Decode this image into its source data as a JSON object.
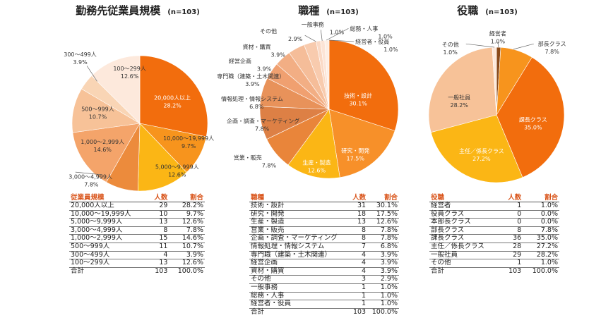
{
  "chart_data": [
    {
      "type": "pie",
      "title": "勤務先従業員規模",
      "n_label": "(n=103)",
      "table_headers": [
        "従業員規模",
        "人数",
        "割合"
      ],
      "slices": [
        {
          "label": "20,000人以上",
          "count": "29",
          "pct": "28.2%",
          "value": 28.2,
          "color": "#f26d0d"
        },
        {
          "label": "10,000～19,999人",
          "count": "10",
          "pct": "9.7%",
          "value": 9.7,
          "color": "#f7941d"
        },
        {
          "label": "5,000～9,999人",
          "count": "13",
          "pct": "12.6%",
          "value": 12.6,
          "color": "#fbb615"
        },
        {
          "label": "3,000～4,999人",
          "count": "8",
          "pct": "7.8%",
          "value": 7.8,
          "color": "#ec8b3c"
        },
        {
          "label": "1,000～2,999人",
          "count": "15",
          "pct": "14.6%",
          "value": 14.6,
          "color": "#f4a46a"
        },
        {
          "label": "500～999人",
          "count": "11",
          "pct": "10.7%",
          "value": 10.7,
          "color": "#f7c298"
        },
        {
          "label": "300～499人",
          "count": "4",
          "pct": "3.9%",
          "value": 3.9,
          "color": "#f9d5b5"
        },
        {
          "label": "100～299人",
          "count": "13",
          "pct": "12.6%",
          "value": 12.6,
          "color": "#fde9dc"
        }
      ],
      "total": {
        "label": "合計",
        "count": "103",
        "pct": "100.0%"
      }
    },
    {
      "type": "pie",
      "title": "職種",
      "n_label": "(n=103)",
      "table_headers": [
        "職種",
        "人数",
        "割合"
      ],
      "slices": [
        {
          "label": "技術・設計",
          "count": "31",
          "pct": "30.1%",
          "value": 30.1,
          "color": "#f26d0d"
        },
        {
          "label": "研究・開発",
          "count": "18",
          "pct": "17.5%",
          "value": 17.5,
          "color": "#f79029"
        },
        {
          "label": "生産・製造",
          "count": "13",
          "pct": "12.6%",
          "value": 12.6,
          "color": "#fbb615"
        },
        {
          "label": "営業・販売",
          "count": "8",
          "pct": "7.8%",
          "value": 7.8,
          "color": "#e9853a"
        },
        {
          "label": "企画・調査・マーケティング",
          "count": "8",
          "pct": "7.8%",
          "value": 7.8,
          "color": "#dd8045"
        },
        {
          "label": "情報処理・情報システム",
          "count": "7",
          "pct": "6.8%",
          "value": 6.8,
          "color": "#e8925a"
        },
        {
          "label": "専門職（建築・土木関連）",
          "count": "4",
          "pct": "3.9%",
          "value": 3.9,
          "color": "#f0a070"
        },
        {
          "label": "経営企画",
          "count": "4",
          "pct": "3.9%",
          "value": 3.9,
          "color": "#f2ae84"
        },
        {
          "label": "資材・購買",
          "count": "4",
          "pct": "3.9%",
          "value": 3.9,
          "color": "#f5bd99"
        },
        {
          "label": "その他",
          "count": "3",
          "pct": "2.9%",
          "value": 2.9,
          "color": "#f8cbae"
        },
        {
          "label": "一般事務",
          "count": "1",
          "pct": "1.0%",
          "value": 1.0,
          "color": "#fad9c5"
        },
        {
          "label": "総務・人事",
          "count": "1",
          "pct": "1.0%",
          "value": 1.0,
          "color": "#fce4d6"
        },
        {
          "label": "経営者・役員",
          "count": "1",
          "pct": "1.0%",
          "value": 1.0,
          "color": "#fdeee4"
        }
      ],
      "total": {
        "label": "合計",
        "count": "103",
        "pct": "100.0%"
      }
    },
    {
      "type": "pie",
      "title": "役職",
      "n_label": "(n=103)",
      "table_headers": [
        "役職",
        "人数",
        "割合"
      ],
      "slices": [
        {
          "label": "経営者",
          "count": "1",
          "pct": "1.0%",
          "value": 1.0,
          "color": "#8a4a1a"
        },
        {
          "label": "役員クラス",
          "count": "0",
          "pct": "0.0%",
          "value": 0,
          "color": "#b35a1f"
        },
        {
          "label": "本部長クラス",
          "count": "0",
          "pct": "0.0%",
          "value": 0,
          "color": "#c86421"
        },
        {
          "label": "部長クラス",
          "count": "8",
          "pct": "7.8%",
          "value": 7.8,
          "color": "#f7941d"
        },
        {
          "label": "課長クラス",
          "count": "36",
          "pct": "35.0%",
          "value": 35.0,
          "color": "#f26d0d"
        },
        {
          "label": "主任／係長クラス",
          "count": "28",
          "pct": "27.2%",
          "value": 27.2,
          "color": "#fbb615"
        },
        {
          "label": "一般社員",
          "count": "29",
          "pct": "28.2%",
          "value": 28.2,
          "color": "#f7c298"
        },
        {
          "label": "その他",
          "count": "1",
          "pct": "1.0%",
          "value": 1.0,
          "color": "#fde9dc"
        }
      ],
      "total": {
        "label": "合計",
        "count": "103",
        "pct": "100.0%"
      }
    }
  ]
}
